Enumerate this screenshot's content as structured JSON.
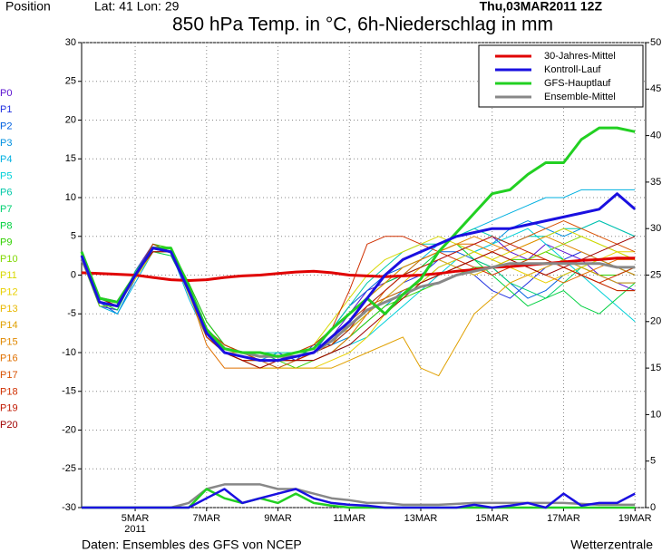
{
  "chart_data": {
    "type": "line",
    "position_label": "Position",
    "location": "Lat: 41 Lon: 29",
    "run": "Thu,03MAR2011 12Z",
    "title": "850 hPa Temp. in °C, 6h-Niederschlag in mm",
    "footer_left": "Daten: Ensembles des GFS von NCEP",
    "footer_right": "Wetterzentrale",
    "x_year": "2011",
    "xlim": [
      3.5,
      19.3
    ],
    "xticks": [
      {
        "value": 5,
        "label": "5MAR"
      },
      {
        "value": 7,
        "label": "7MAR"
      },
      {
        "value": 9,
        "label": "9MAR"
      },
      {
        "value": 11,
        "label": "11MAR"
      },
      {
        "value": 13,
        "label": "13MAR"
      },
      {
        "value": 15,
        "label": "15MAR"
      },
      {
        "value": 17,
        "label": "17MAR"
      },
      {
        "value": 19,
        "label": "19MAR"
      }
    ],
    "ylim": [
      -30,
      30
    ],
    "yticks": [
      -30,
      -25,
      -20,
      -15,
      -10,
      -5,
      0,
      5,
      10,
      15,
      20,
      25,
      30
    ],
    "y2lim": [
      0,
      50
    ],
    "y2ticks": [
      0,
      5,
      10,
      15,
      20,
      25,
      30,
      35,
      40,
      45,
      50
    ],
    "grid": true,
    "legend": "upper right",
    "x": [
      3.5,
      4,
      4.5,
      5,
      5.5,
      6,
      6.5,
      7,
      7.5,
      8,
      8.5,
      9,
      9.5,
      10,
      10.5,
      11,
      11.5,
      12,
      12.5,
      13,
      13.5,
      14,
      14.5,
      15,
      15.5,
      16,
      16.5,
      17,
      17.5,
      18,
      18.5,
      19
    ],
    "series": [
      {
        "name": "30-Jahres-Mittel",
        "color": "#e00000",
        "values": [
          0.3,
          0.2,
          0.1,
          0,
          -0.3,
          -0.6,
          -0.7,
          -0.6,
          -0.3,
          -0.1,
          0,
          0.2,
          0.4,
          0.5,
          0.3,
          0,
          -0.1,
          -0.2,
          -0.1,
          0,
          0.2,
          0.5,
          0.7,
          1,
          1.1,
          1.3,
          1.5,
          1.7,
          1.9,
          2,
          2.2,
          2.2
        ]
      },
      {
        "name": "Kontroll-Lauf",
        "color": "#1a10e0",
        "values": [
          2.5,
          -3.5,
          -4,
          0,
          3.5,
          3,
          -2,
          -7.5,
          -10,
          -10.5,
          -11,
          -11,
          -10.5,
          -10,
          -8,
          -6,
          -3,
          0,
          2,
          3,
          4,
          5,
          5.5,
          6,
          6,
          6.5,
          7,
          7.5,
          8,
          8.5,
          10.5,
          8.5
        ],
        "precip": [
          0,
          0,
          0,
          0,
          0,
          0,
          0,
          1,
          2,
          0.5,
          1,
          1.5,
          2,
          1,
          0.5,
          0.3,
          0.2,
          0,
          0,
          0,
          0,
          0,
          0.3,
          0,
          0.2,
          0.5,
          0,
          1.5,
          0.2,
          0.5,
          0.5,
          1.5
        ]
      },
      {
        "name": "GFS-Hauptlauf",
        "color": "#22d022",
        "values": [
          3,
          -3,
          -3.5,
          0,
          3.5,
          3.5,
          -1.5,
          -7,
          -9.5,
          -10,
          -10,
          -10.5,
          -10,
          -9.5,
          -7,
          -5,
          -3,
          -5,
          -2.5,
          -0.5,
          3,
          5.5,
          8,
          10.5,
          11,
          13,
          14.5,
          14.5,
          17.5,
          19,
          19,
          18.5
        ],
        "precip": [
          0,
          0,
          0,
          0,
          0,
          0,
          0,
          2,
          1,
          0.5,
          1,
          0.5,
          1.5,
          0.5,
          0.2,
          0,
          0,
          0,
          0,
          0,
          0,
          0,
          0,
          0,
          0,
          0,
          0,
          0,
          0,
          0,
          0,
          0
        ]
      },
      {
        "name": "Ensemble-Mittel",
        "color": "#888888",
        "values": [
          2,
          -3,
          -3.5,
          0,
          3.5,
          3,
          -2,
          -7,
          -9.5,
          -10,
          -10.5,
          -10.5,
          -10.5,
          -10,
          -8.5,
          -6.5,
          -4.5,
          -3.5,
          -2.5,
          -1.5,
          -1,
          0,
          0.5,
          1,
          1.5,
          1.5,
          1.5,
          1.5,
          1.5,
          1.5,
          1,
          1
        ],
        "precip": [
          0,
          0,
          0,
          0,
          0,
          0,
          0.5,
          2,
          2.5,
          2.5,
          2.5,
          2,
          2,
          1.5,
          1,
          0.8,
          0.5,
          0.5,
          0.3,
          0.3,
          0.3,
          0.4,
          0.5,
          0.5,
          0.5,
          0.5,
          0.5,
          0.5,
          0.4,
          0.3,
          0.3,
          0.3
        ]
      }
    ],
    "members": [
      {
        "name": "P0",
        "color": "#5a10d0",
        "values": [
          2,
          -4,
          -4.5,
          0.5,
          4,
          3,
          -1,
          -6,
          -9,
          -10,
          -11,
          -11,
          -11,
          -10,
          -8,
          -5,
          -2,
          -1,
          0,
          1,
          2,
          3,
          4,
          5,
          3,
          2,
          4,
          3,
          2,
          0,
          -1,
          -2
        ]
      },
      {
        "name": "P1",
        "color": "#2030e0",
        "values": [
          2,
          -3,
          -4,
          0,
          3,
          3,
          -2,
          -7,
          -10,
          -11,
          -11,
          -10,
          -11,
          -9,
          -9,
          -7,
          -5,
          -3,
          -1,
          0,
          2,
          1,
          0,
          -2,
          -3,
          -1,
          1,
          2,
          3,
          2,
          1,
          0
        ]
      },
      {
        "name": "P2",
        "color": "#0060e0",
        "values": [
          2,
          -3.5,
          -5,
          -0.5,
          3.5,
          3.5,
          -2,
          -8,
          -10,
          -11,
          -12,
          -11,
          -11,
          -10,
          -7,
          -4,
          -2,
          0,
          1,
          2,
          3,
          3,
          2,
          1,
          -1,
          -3,
          -2,
          0,
          1,
          0,
          -1,
          -1
        ]
      },
      {
        "name": "P3",
        "color": "#0090e0",
        "values": [
          2,
          -3,
          -3.5,
          0,
          4,
          3,
          -2,
          -7,
          -9,
          -10,
          -10,
          -11,
          -11,
          -10,
          -9,
          -8,
          -6,
          -4,
          -2,
          -1,
          1,
          2,
          3,
          4,
          6,
          7,
          6,
          5,
          6,
          7,
          6,
          5
        ]
      },
      {
        "name": "P4",
        "color": "#00b0e0",
        "values": [
          2,
          -4,
          -5,
          -1,
          3,
          3,
          -3,
          -8,
          -10,
          -10,
          -11,
          -10,
          -10,
          -10,
          -8,
          -6,
          -4,
          -2,
          0,
          2,
          4,
          5,
          6,
          7,
          8,
          9,
          10,
          10,
          11,
          11,
          11,
          11
        ]
      },
      {
        "name": "P5",
        "color": "#00d0d8",
        "values": [
          2,
          -3,
          -4,
          0,
          3.5,
          3.5,
          -2,
          -7,
          -10,
          -11,
          -11,
          -12,
          -11,
          -11,
          -10,
          -9,
          -8,
          -6,
          -4,
          -2,
          0,
          2,
          3,
          4,
          5,
          6,
          4,
          2,
          0,
          -2,
          -4,
          -6
        ]
      },
      {
        "name": "P6",
        "color": "#00c8a8",
        "values": [
          2,
          -3.5,
          -4,
          0,
          4,
          3,
          -1,
          -6,
          -9,
          -10,
          -10,
          -10,
          -10,
          -9,
          -7,
          -4,
          -1,
          1,
          3,
          4,
          4,
          5,
          6,
          5,
          4,
          5,
          5,
          6,
          6,
          7,
          6,
          5
        ]
      },
      {
        "name": "P7",
        "color": "#00d070",
        "values": [
          2,
          -3,
          -4,
          0.5,
          3.5,
          3,
          -2,
          -7,
          -10,
          -10,
          -11,
          -11,
          -11,
          -10,
          -9,
          -7,
          -5,
          -3,
          -2,
          -1,
          0,
          1,
          2,
          1,
          -1,
          -2,
          -3,
          -1,
          1,
          2,
          1,
          0
        ]
      },
      {
        "name": "P8",
        "color": "#00d040",
        "values": [
          2,
          -3.5,
          -4.5,
          0,
          3,
          2.5,
          -2,
          -7,
          -9,
          -10,
          -10,
          -11,
          -10,
          -10,
          -8,
          -6,
          -3,
          -1,
          0,
          1,
          3,
          4,
          2,
          0,
          -2,
          -4,
          -3,
          -2,
          -4,
          -5,
          -3,
          -1
        ]
      },
      {
        "name": "P9",
        "color": "#30d000",
        "values": [
          2,
          -3,
          -4,
          0,
          4,
          3.5,
          -1,
          -6,
          -9,
          -10,
          -11,
          -11,
          -12,
          -11,
          -10,
          -8,
          -6,
          -4,
          -3,
          -2,
          -1,
          0,
          1,
          1,
          2,
          2,
          3,
          2,
          1,
          0,
          0,
          1
        ]
      },
      {
        "name": "P10",
        "color": "#80d800",
        "values": [
          2,
          -4,
          -4,
          0,
          3.5,
          3,
          -2,
          -7,
          -10,
          -11,
          -11,
          -11,
          -11,
          -10,
          -9,
          -6,
          -3,
          -1,
          1,
          2,
          3,
          4,
          3,
          2,
          1,
          2,
          3,
          4,
          5,
          4,
          3,
          2
        ]
      },
      {
        "name": "P11",
        "color": "#d8d800",
        "values": [
          2,
          -3,
          -4,
          0,
          3.5,
          3,
          -2,
          -8,
          -10,
          -10,
          -11,
          -11,
          -10,
          -9,
          -6,
          -3,
          0,
          2,
          3,
          4,
          5,
          4,
          3,
          2,
          3,
          4,
          5,
          6,
          5,
          4,
          3,
          2
        ]
      },
      {
        "name": "P12",
        "color": "#e8d000",
        "values": [
          2,
          -3.5,
          -4,
          -0.5,
          3,
          3,
          -2.5,
          -8,
          -10,
          -11,
          -12,
          -12,
          -12,
          -12,
          -11,
          -10,
          -8,
          -5,
          -3,
          -1,
          1,
          2,
          3,
          2,
          1,
          0,
          -1,
          0,
          1,
          2,
          3,
          3
        ]
      },
      {
        "name": "P13",
        "color": "#e8b800",
        "values": [
          2,
          -3,
          -4,
          0,
          3.5,
          3,
          -2,
          -7,
          -9,
          -10,
          -11,
          -11,
          -11,
          -10,
          -8,
          -7,
          -5,
          -3,
          -1,
          1,
          2,
          1,
          0,
          1,
          2,
          3,
          2,
          1,
          0,
          -1,
          -2,
          -2
        ]
      },
      {
        "name": "P14",
        "color": "#e0a000",
        "values": [
          2,
          -3,
          -4,
          0,
          3.5,
          3,
          -2,
          -7,
          -10,
          -11,
          -12,
          -12,
          -12,
          -12,
          -12,
          -11,
          -10,
          -9,
          -8,
          -12,
          -13,
          -9,
          -5,
          -3,
          -1,
          0,
          1,
          2,
          1,
          0,
          -1,
          -1
        ]
      },
      {
        "name": "P15",
        "color": "#e08800",
        "values": [
          2,
          -3.5,
          -4,
          0,
          3,
          3,
          -2,
          -7,
          -10,
          -10,
          -11,
          -11,
          -11,
          -10,
          -9,
          -6,
          -3,
          -1,
          1,
          2,
          3,
          4,
          5,
          4,
          3,
          4,
          5,
          4,
          3,
          2,
          1,
          0
        ]
      },
      {
        "name": "P16",
        "color": "#e07000",
        "values": [
          2,
          -3,
          -4,
          0,
          3.5,
          3.5,
          -2,
          -9,
          -12,
          -12,
          -12,
          -11,
          -11,
          -11,
          -10,
          -8,
          -5,
          -2,
          0,
          2,
          3,
          4,
          4,
          3,
          2,
          1,
          0,
          -1,
          0,
          1,
          2,
          2
        ]
      },
      {
        "name": "P17",
        "color": "#d85000",
        "values": [
          2,
          -3,
          -4,
          0,
          3.5,
          3,
          -2,
          -7,
          -10,
          -11,
          -11,
          -12,
          -11,
          -10,
          -8,
          -6,
          -4,
          -3,
          -2,
          -1,
          0,
          1,
          2,
          3,
          4,
          5,
          6,
          7,
          6,
          5,
          4,
          3
        ]
      },
      {
        "name": "P18",
        "color": "#d03000",
        "values": [
          2,
          -3.5,
          -4,
          0,
          4,
          3,
          -2,
          -7,
          -9,
          -10,
          -11,
          -11,
          -10,
          -9,
          -7,
          -2,
          4,
          5,
          5,
          4,
          3,
          2,
          1,
          0,
          1,
          2,
          2,
          1,
          0,
          -1,
          0,
          1
        ]
      },
      {
        "name": "P19",
        "color": "#c01800",
        "values": [
          2,
          -3,
          -4,
          0,
          3.5,
          3,
          -2,
          -8,
          -10,
          -11,
          -11,
          -11,
          -11,
          -10,
          -9,
          -7,
          -4,
          -2,
          0,
          1,
          2,
          3,
          4,
          5,
          4,
          3,
          2,
          1,
          0,
          -1,
          -2,
          -2
        ]
      },
      {
        "name": "P20",
        "color": "#a00000",
        "values": [
          2,
          -3,
          -4,
          0,
          3,
          3,
          -2,
          -7,
          -10,
          -11,
          -12,
          -11,
          -11,
          -11,
          -10,
          -9,
          -7,
          -5,
          -3,
          -1,
          0,
          1,
          2,
          3,
          2,
          1,
          0,
          1,
          2,
          3,
          4,
          5
        ]
      }
    ]
  }
}
